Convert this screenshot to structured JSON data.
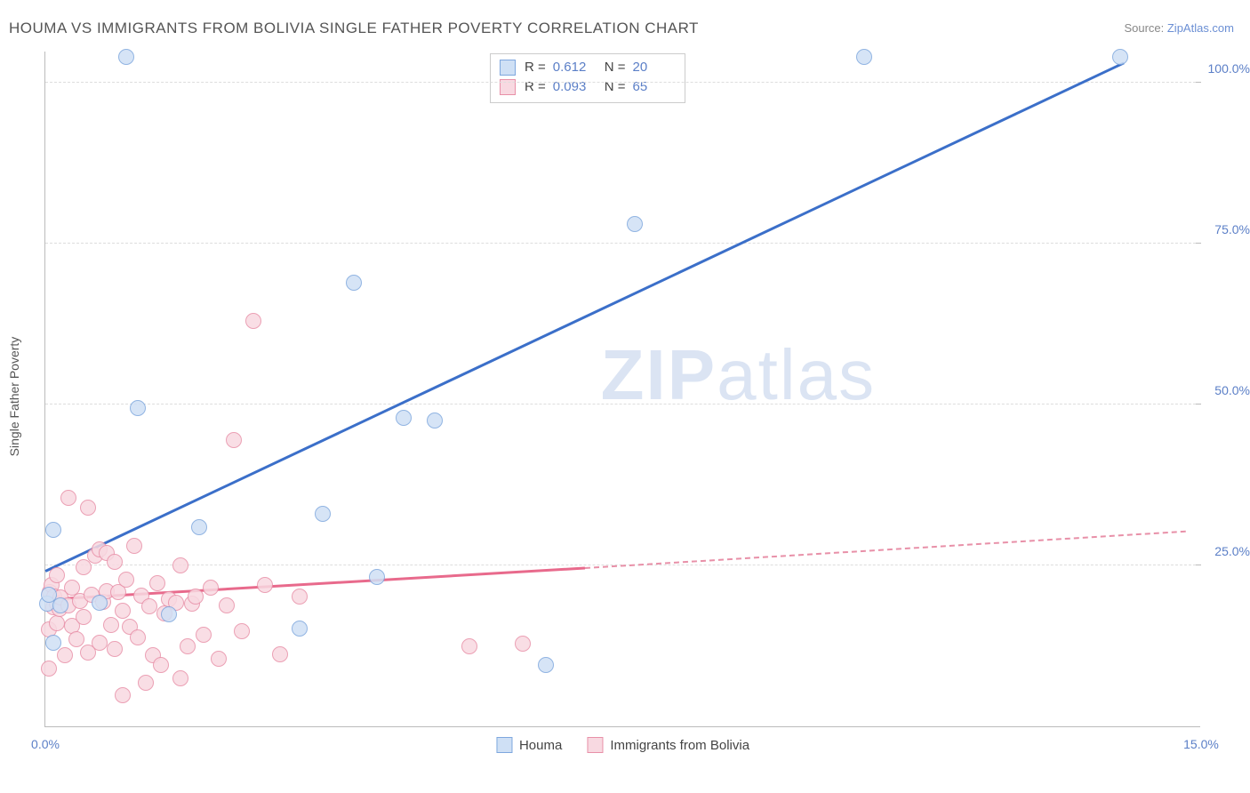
{
  "title": "HOUMA VS IMMIGRANTS FROM BOLIVIA SINGLE FATHER POVERTY CORRELATION CHART",
  "source_prefix": "Source: ",
  "source_link": "ZipAtlas.com",
  "y_axis_label": "Single Father Poverty",
  "watermark": "ZIPatlas",
  "chart": {
    "type": "scatter-correlation",
    "xlim": [
      0,
      15
    ],
    "ylim": [
      0,
      105
    ],
    "x_ticks": [
      0,
      15
    ],
    "x_tick_labels": [
      "0.0%",
      "15.0%"
    ],
    "y_ticks": [
      25,
      50,
      75,
      100
    ],
    "y_tick_labels": [
      "25.0%",
      "50.0%",
      "75.0%",
      "100.0%"
    ],
    "grid_color": "#dddddd",
    "axis_color": "#bbbbbb",
    "background_color": "#ffffff",
    "marker_radius": 9,
    "marker_border_width": 1.5,
    "series": {
      "houma": {
        "label": "Houma",
        "fill": "#cfe0f5",
        "stroke": "#7ea7de",
        "line_color": "#3b6fc9",
        "R": "0.612",
        "N": "20",
        "trend": {
          "x1": 0,
          "y1": 24,
          "x2": 14.0,
          "y2": 103
        },
        "points": [
          [
            0.02,
            19
          ],
          [
            0.05,
            20.5
          ],
          [
            0.1,
            30.5
          ],
          [
            0.1,
            13
          ],
          [
            0.2,
            18.8
          ],
          [
            0.7,
            19.2
          ],
          [
            1.05,
            104
          ],
          [
            1.2,
            49.5
          ],
          [
            1.6,
            17.4
          ],
          [
            2.0,
            31
          ],
          [
            3.3,
            15.2
          ],
          [
            3.6,
            33
          ],
          [
            4.0,
            69
          ],
          [
            4.3,
            23.2
          ],
          [
            4.65,
            48
          ],
          [
            5.05,
            47.5
          ],
          [
            6.5,
            9.5
          ],
          [
            7.65,
            78
          ],
          [
            10.63,
            104
          ],
          [
            13.95,
            104
          ]
        ]
      },
      "bolivia": {
        "label": "Immigrants from Bolivia",
        "fill": "#f8d9e1",
        "stroke": "#e890a8",
        "line_color": "#e86a8c",
        "R": "0.093",
        "N": "65",
        "trend_solid": {
          "x1": 0,
          "y1": 19.6,
          "x2": 7.0,
          "y2": 24.5
        },
        "trend_dash": {
          "x1": 7.0,
          "y1": 24.5,
          "x2": 14.8,
          "y2": 30.2
        },
        "points": [
          [
            0.05,
            9
          ],
          [
            0.05,
            15
          ],
          [
            0.06,
            20.8
          ],
          [
            0.08,
            22
          ],
          [
            0.1,
            18.5
          ],
          [
            0.12,
            20.2
          ],
          [
            0.15,
            16
          ],
          [
            0.15,
            23.5
          ],
          [
            0.15,
            19
          ],
          [
            0.18,
            18.2
          ],
          [
            0.2,
            20
          ],
          [
            0.25,
            11
          ],
          [
            0.3,
            35.5
          ],
          [
            0.3,
            18.8
          ],
          [
            0.35,
            21.5
          ],
          [
            0.35,
            15.6
          ],
          [
            0.4,
            13.5
          ],
          [
            0.45,
            19.5
          ],
          [
            0.5,
            17
          ],
          [
            0.5,
            24.7
          ],
          [
            0.55,
            11.5
          ],
          [
            0.55,
            34
          ],
          [
            0.6,
            20.5
          ],
          [
            0.65,
            26.5
          ],
          [
            0.7,
            13
          ],
          [
            0.7,
            27.5
          ],
          [
            0.75,
            19.3
          ],
          [
            0.8,
            27
          ],
          [
            0.8,
            21
          ],
          [
            0.85,
            15.8
          ],
          [
            0.9,
            25.5
          ],
          [
            0.9,
            12
          ],
          [
            0.95,
            20.8
          ],
          [
            1.0,
            18
          ],
          [
            1.0,
            4.8
          ],
          [
            1.05,
            22.8
          ],
          [
            1.1,
            15.5
          ],
          [
            1.15,
            28
          ],
          [
            1.2,
            13.8
          ],
          [
            1.25,
            20.3
          ],
          [
            1.3,
            6.8
          ],
          [
            1.35,
            18.7
          ],
          [
            1.4,
            11
          ],
          [
            1.45,
            22.2
          ],
          [
            1.5,
            9.5
          ],
          [
            1.55,
            17.5
          ],
          [
            1.6,
            19.8
          ],
          [
            1.7,
            19.2
          ],
          [
            1.75,
            25
          ],
          [
            1.75,
            7.5
          ],
          [
            1.85,
            12.4
          ],
          [
            1.9,
            19
          ],
          [
            1.95,
            20.2
          ],
          [
            2.05,
            14.2
          ],
          [
            2.15,
            21.5
          ],
          [
            2.25,
            10.5
          ],
          [
            2.35,
            18.8
          ],
          [
            2.45,
            44.5
          ],
          [
            2.55,
            14.8
          ],
          [
            2.7,
            63
          ],
          [
            2.85,
            22
          ],
          [
            3.05,
            11.2
          ],
          [
            3.3,
            20.2
          ],
          [
            5.5,
            12.5
          ],
          [
            6.2,
            12.8
          ]
        ]
      }
    }
  },
  "stats_labels": {
    "R": "R =",
    "N": "N ="
  },
  "legend": {
    "houma": "Houma",
    "bolivia": "Immigrants from Bolivia"
  }
}
